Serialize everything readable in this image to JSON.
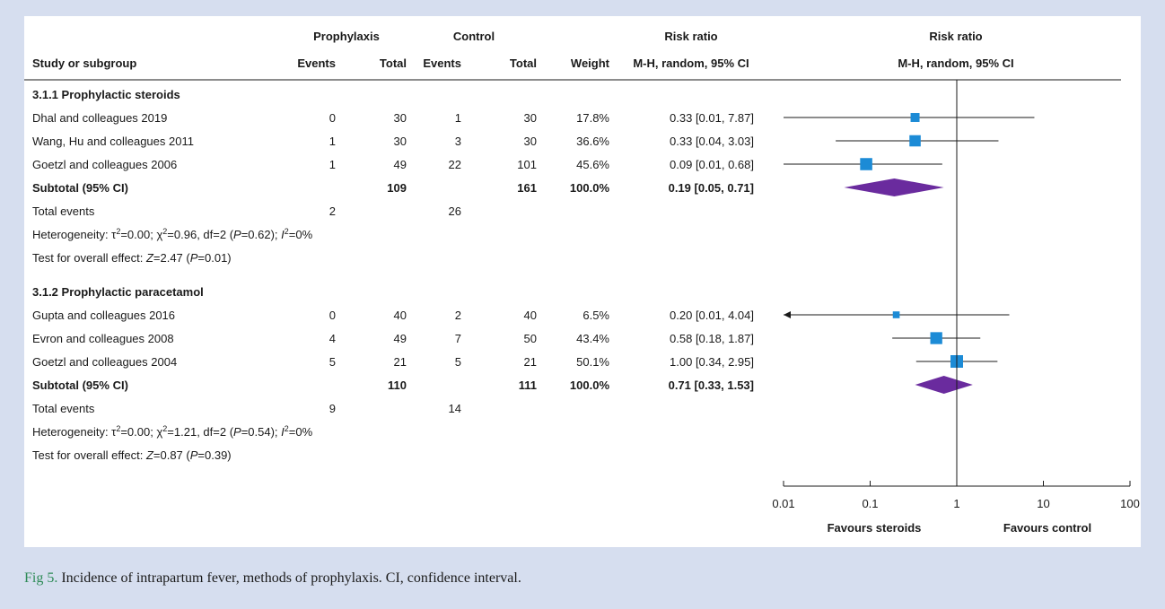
{
  "caption": {
    "label": "Fig 5.",
    "text": "Incidence of intrapartum fever, methods of prophylaxis. CI, confidence interval."
  },
  "headers": {
    "prophylaxis": "Prophylaxis",
    "control": "Control",
    "risk_ratio": "Risk ratio",
    "risk_ratio_plot": "Risk ratio",
    "study": "Study or subgroup",
    "events": "Events",
    "total": "Total",
    "events2": "Events",
    "total2": "Total",
    "weight": "Weight",
    "method": "M-H, random, 95% CI",
    "method_plot": "M-H, random, 95% CI"
  },
  "chart_data": {
    "type": "forest",
    "x_scale": "log",
    "xlim": [
      0.01,
      100
    ],
    "ticks": [
      "0.01",
      "0.1",
      "1",
      "10",
      "100"
    ],
    "tick_values": [
      0.01,
      0.1,
      1,
      10,
      100
    ],
    "favours_left": "Favours steroids",
    "favours_right": "Favours control",
    "subgroups": [
      {
        "title": "3.1.1 Prophylactic steroids",
        "studies": [
          {
            "name": "Dhal and colleagues 2019",
            "events_p": "0",
            "total_p": "30",
            "events_c": "1",
            "total_c": "30",
            "weight": "17.8%",
            "rr_text": "0.33 [0.01, 7.87]",
            "rr": 0.33,
            "lo": 0.01,
            "hi": 7.87,
            "w": 17.8
          },
          {
            "name": "Wang, Hu and colleagues 2011",
            "events_p": "1",
            "total_p": "30",
            "events_c": "3",
            "total_c": "30",
            "weight": "36.6%",
            "rr_text": "0.33 [0.04, 3.03]",
            "rr": 0.33,
            "lo": 0.04,
            "hi": 3.03,
            "w": 36.6
          },
          {
            "name": "Goetzl and colleagues 2006",
            "events_p": "1",
            "total_p": "49",
            "events_c": "22",
            "total_c": "101",
            "weight": "45.6%",
            "rr_text": "0.09 [0.01, 0.68]",
            "rr": 0.09,
            "lo": 0.01,
            "hi": 0.68,
            "w": 45.6
          }
        ],
        "subtotal": {
          "label": "Subtotal (95% CI)",
          "total_p": "109",
          "total_c": "161",
          "weight": "100.0%",
          "rr_text": "0.19 [0.05, 0.71]",
          "rr": 0.19,
          "lo": 0.05,
          "hi": 0.71
        },
        "events": {
          "label": "Total events",
          "p": "2",
          "c": "26"
        },
        "heterogeneity": {
          "prefix": "Heterogeneity: ",
          "tau": "τ",
          "tau_val": "=0.00; ",
          "chi": "χ",
          "chi_val": "=0.96, df=2 (",
          "p": "P",
          "p_val": "=0.62); ",
          "i": "I",
          "i_val": "=0%",
          "sup": "2"
        },
        "overall": {
          "prefix": "Test for overall effect: ",
          "z": "Z",
          "z_val": "=2.47 (",
          "p": "P",
          "p_val": "=0.01)"
        }
      },
      {
        "title": "3.1.2 Prophylactic paracetamol",
        "studies": [
          {
            "name": "Gupta and colleagues 2016",
            "events_p": "0",
            "total_p": "40",
            "events_c": "2",
            "total_c": "40",
            "weight": "6.5%",
            "rr_text": "0.20 [0.01, 4.04]",
            "rr": 0.2,
            "lo": 0.01,
            "hi": 4.04,
            "w": 6.5,
            "arrow_left": true
          },
          {
            "name": "Evron and colleagues 2008",
            "events_p": "4",
            "total_p": "49",
            "events_c": "7",
            "total_c": "50",
            "weight": "43.4%",
            "rr_text": "0.58 [0.18, 1.87]",
            "rr": 0.58,
            "lo": 0.18,
            "hi": 1.87,
            "w": 43.4
          },
          {
            "name": "Goetzl and colleagues 2004",
            "events_p": "5",
            "total_p": "21",
            "events_c": "5",
            "total_c": "21",
            "weight": "50.1%",
            "rr_text": "1.00 [0.34, 2.95]",
            "rr": 1.0,
            "lo": 0.34,
            "hi": 2.95,
            "w": 50.1
          }
        ],
        "subtotal": {
          "label": "Subtotal (95% CI)",
          "total_p": "110",
          "total_c": "111",
          "weight": "100.0%",
          "rr_text": "0.71 [0.33, 1.53]",
          "rr": 0.71,
          "lo": 0.33,
          "hi": 1.53
        },
        "events": {
          "label": "Total events",
          "p": "9",
          "c": "14"
        },
        "heterogeneity": {
          "prefix": "Heterogeneity: ",
          "tau": "τ",
          "tau_val": "=0.00; ",
          "chi": "χ",
          "chi_val": "=1.21, df=2 (",
          "p": "P",
          "p_val": "=0.54); ",
          "i": "I",
          "i_val": "=0%",
          "sup": "2"
        },
        "overall": {
          "prefix": "Test for overall effect: ",
          "z": "Z",
          "z_val": "=0.87 (",
          "p": "P",
          "p_val": "=0.39)"
        }
      }
    ],
    "colors": {
      "study_square": "#1c8bd6",
      "diamond": "#6a2b9e",
      "line": "#1a1a1a"
    }
  }
}
